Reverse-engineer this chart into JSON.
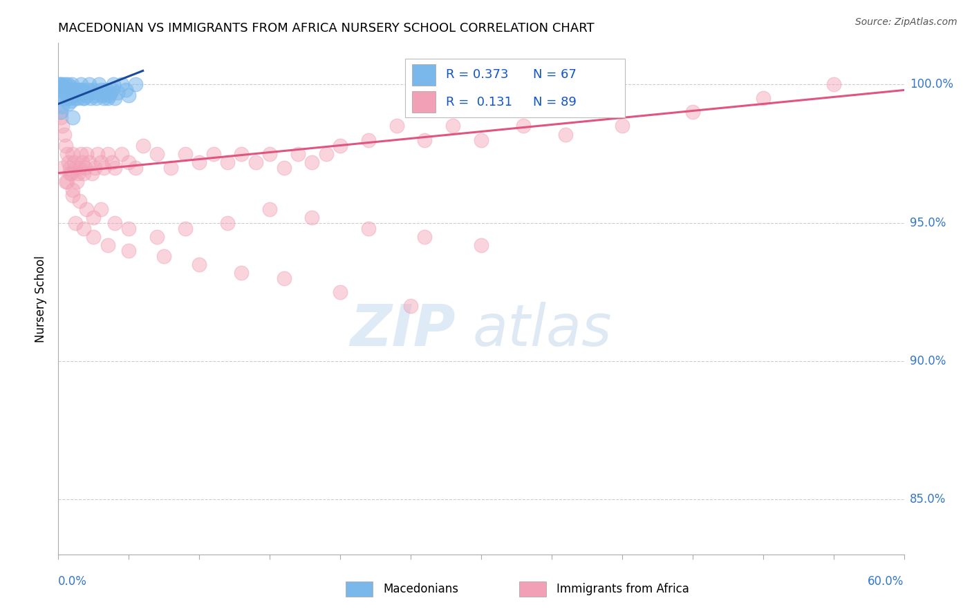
{
  "title": "MACEDONIAN VS IMMIGRANTS FROM AFRICA NURSERY SCHOOL CORRELATION CHART",
  "source": "Source: ZipAtlas.com",
  "ylabel": "Nursery School",
  "yticks": [
    85.0,
    90.0,
    95.0,
    100.0
  ],
  "xmin": 0.0,
  "xmax": 60.0,
  "ymin": 83.0,
  "ymax": 101.5,
  "blue_R": 0.373,
  "blue_N": 67,
  "pink_R": 0.131,
  "pink_N": 89,
  "blue_color": "#7ab8ec",
  "pink_color": "#f2a0b5",
  "blue_line_color": "#1a4a9a",
  "pink_line_color": "#e05580",
  "legend_blue_label": "Macedonians",
  "legend_pink_label": "Immigrants from Africa",
  "watermark_zip": "ZIP",
  "watermark_atlas": "atlas",
  "blue_scatter_x": [
    0.1,
    0.15,
    0.2,
    0.25,
    0.3,
    0.35,
    0.4,
    0.45,
    0.5,
    0.55,
    0.6,
    0.65,
    0.7,
    0.75,
    0.8,
    0.85,
    0.9,
    0.95,
    1.0,
    1.1,
    1.2,
    1.3,
    1.4,
    1.5,
    1.6,
    1.7,
    1.8,
    1.9,
    2.0,
    2.1,
    2.2,
    2.3,
    2.4,
    2.5,
    2.6,
    2.7,
    2.8,
    2.9,
    3.0,
    3.1,
    3.2,
    3.3,
    3.4,
    3.5,
    3.6,
    3.7,
    3.8,
    3.9,
    4.0,
    4.2,
    4.5,
    4.8,
    5.0,
    5.5,
    0.2,
    0.3,
    0.4,
    0.5,
    0.6,
    0.7,
    0.8,
    0.9,
    1.0,
    1.2,
    1.4,
    1.6,
    1.8
  ],
  "blue_scatter_y": [
    100.0,
    100.0,
    99.8,
    99.9,
    100.0,
    99.7,
    99.9,
    100.0,
    99.8,
    99.5,
    99.7,
    100.0,
    99.6,
    99.8,
    99.5,
    99.7,
    99.9,
    100.0,
    99.8,
    99.6,
    99.7,
    99.8,
    99.5,
    99.7,
    100.0,
    99.8,
    99.5,
    99.7,
    99.6,
    99.8,
    100.0,
    99.5,
    99.7,
    99.8,
    99.6,
    99.5,
    99.7,
    100.0,
    99.8,
    99.6,
    99.5,
    99.7,
    99.8,
    99.5,
    99.6,
    99.7,
    99.8,
    100.0,
    99.5,
    99.7,
    100.0,
    99.8,
    99.6,
    100.0,
    99.0,
    99.2,
    99.5,
    99.7,
    99.8,
    99.3,
    99.6,
    99.4,
    98.8,
    99.5,
    99.7,
    99.8,
    99.5
  ],
  "pink_scatter_x": [
    0.1,
    0.2,
    0.3,
    0.4,
    0.5,
    0.6,
    0.7,
    0.8,
    0.9,
    1.0,
    1.1,
    1.2,
    1.3,
    1.4,
    1.5,
    1.6,
    1.7,
    1.8,
    1.9,
    2.0,
    2.2,
    2.4,
    2.6,
    2.8,
    3.0,
    3.2,
    3.5,
    3.8,
    4.0,
    4.5,
    5.0,
    5.5,
    6.0,
    7.0,
    8.0,
    9.0,
    10.0,
    11.0,
    12.0,
    13.0,
    14.0,
    15.0,
    16.0,
    17.0,
    18.0,
    19.0,
    20.0,
    22.0,
    24.0,
    26.0,
    28.0,
    30.0,
    33.0,
    36.0,
    40.0,
    45.0,
    50.0,
    55.0,
    0.5,
    0.8,
    1.0,
    1.5,
    2.0,
    2.5,
    3.0,
    4.0,
    5.0,
    7.0,
    9.0,
    12.0,
    15.0,
    18.0,
    22.0,
    26.0,
    30.0,
    1.2,
    1.8,
    2.5,
    3.5,
    5.0,
    7.5,
    10.0,
    13.0,
    16.0,
    20.0,
    25.0,
    0.3,
    0.6,
    1.0
  ],
  "pink_scatter_y": [
    99.0,
    98.8,
    98.5,
    98.2,
    97.8,
    97.5,
    97.2,
    97.0,
    96.8,
    97.5,
    97.2,
    97.0,
    96.5,
    96.8,
    97.0,
    97.5,
    97.2,
    96.8,
    97.0,
    97.5,
    97.2,
    96.8,
    97.0,
    97.5,
    97.2,
    97.0,
    97.5,
    97.2,
    97.0,
    97.5,
    97.2,
    97.0,
    97.8,
    97.5,
    97.0,
    97.5,
    97.2,
    97.5,
    97.2,
    97.5,
    97.2,
    97.5,
    97.0,
    97.5,
    97.2,
    97.5,
    97.8,
    98.0,
    98.5,
    98.0,
    98.5,
    98.0,
    98.5,
    98.2,
    98.5,
    99.0,
    99.5,
    100.0,
    96.5,
    96.8,
    96.2,
    95.8,
    95.5,
    95.2,
    95.5,
    95.0,
    94.8,
    94.5,
    94.8,
    95.0,
    95.5,
    95.2,
    94.8,
    94.5,
    94.2,
    95.0,
    94.8,
    94.5,
    94.2,
    94.0,
    93.8,
    93.5,
    93.2,
    93.0,
    92.5,
    92.0,
    97.0,
    96.5,
    96.0
  ],
  "pink_line_x0": 0.0,
  "pink_line_y0": 96.8,
  "pink_line_x1": 60.0,
  "pink_line_y1": 99.8,
  "blue_line_x0": 0.0,
  "blue_line_y0": 99.3,
  "blue_line_x1": 6.0,
  "blue_line_y1": 100.5
}
